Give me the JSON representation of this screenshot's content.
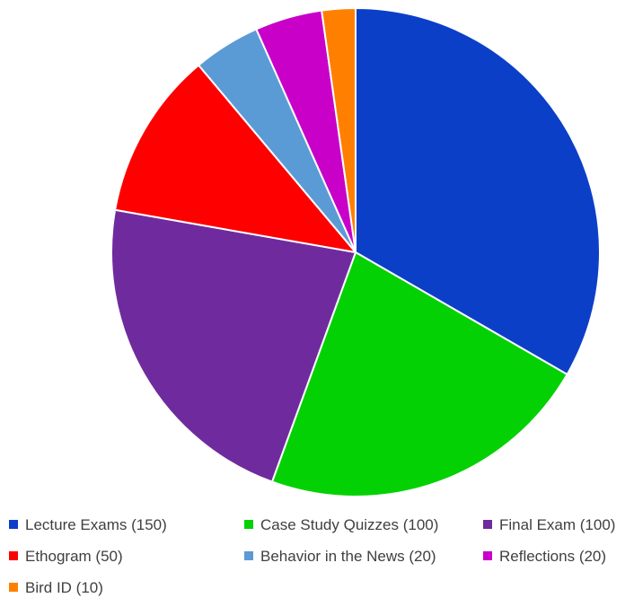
{
  "chart_data": {
    "type": "pie",
    "title": "",
    "start_angle_deg": 0,
    "direction": "clockwise",
    "legend_position": "bottom",
    "slices": [
      {
        "label": "Lecture Exams (150)",
        "value": 150,
        "color": "#0c3fc8"
      },
      {
        "label": "Case Study Quizzes (100)",
        "value": 100,
        "color": "#04d104"
      },
      {
        "label": "Final Exam (100)",
        "value": 100,
        "color": "#6f2b9e"
      },
      {
        "label": "Ethogram (50)",
        "value": 50,
        "color": "#ff0000"
      },
      {
        "label": "Behavior in the News (20)",
        "value": 20,
        "color": "#5b9bd5"
      },
      {
        "label": "Reflections (20)",
        "value": 20,
        "color": "#c800c8"
      },
      {
        "label": "Bird ID (10)",
        "value": 10,
        "color": "#ff8000"
      }
    ]
  }
}
